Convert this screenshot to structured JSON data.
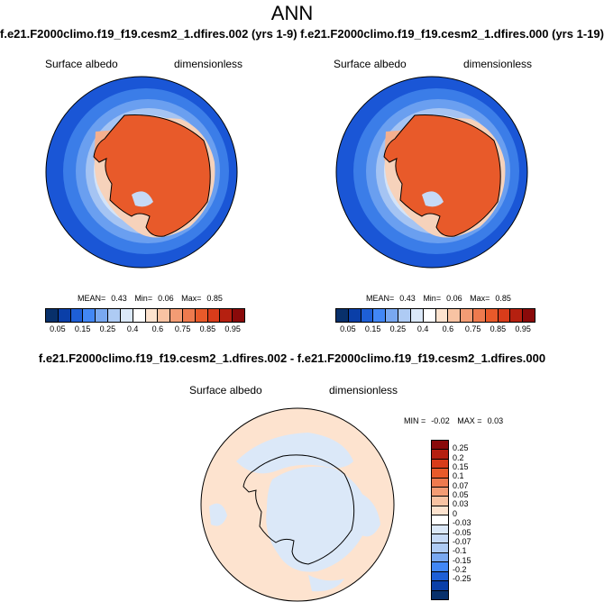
{
  "title": "ANN",
  "runs": {
    "left": "f.e21.F2000climo.f19_f19.cesm2_1.dfires.002 (yrs 1-9)",
    "right": "f.e21.F2000climo.f19_f19.cesm2_1.dfires.000 (yrs 1-19)"
  },
  "panels": [
    {
      "variable": "Surface albedo",
      "units": "dimensionless",
      "stats": {
        "mean_label": "MEAN=",
        "mean": "0.43",
        "min_label": "Min=",
        "min": "0.06",
        "max_label": "Max=",
        "max": "0.85"
      }
    },
    {
      "variable": "Surface albedo",
      "units": "dimensionless",
      "stats": {
        "mean_label": "MEAN=",
        "mean": "0.43",
        "min_label": "Min=",
        "min": "0.06",
        "max_label": "Max=",
        "max": "0.85"
      }
    }
  ],
  "colorbar": {
    "colors": [
      "#08306b",
      "#0a3fa8",
      "#1e5fd6",
      "#4287f5",
      "#79a8f0",
      "#aecbf4",
      "#dbe8f8",
      "#ffffff",
      "#fde3cf",
      "#f8c3a3",
      "#f39c74",
      "#ee7a4e",
      "#e85a2a",
      "#d83c1a",
      "#b52010",
      "#8a0a0a"
    ],
    "ticks": [
      "0.05",
      "0.15",
      "0.25",
      "0.4",
      "0.6",
      "0.75",
      "0.85",
      "0.95"
    ]
  },
  "difference": {
    "title": "f.e21.F2000climo.f19_f19.cesm2_1.dfires.002 - f.e21.F2000climo.f19_f19.cesm2_1.dfires.000",
    "variable": "Surface albedo",
    "units": "dimensionless",
    "stats": {
      "min_label": "MIN =",
      "min": "-0.02",
      "max_label": "MAX =",
      "max": "0.03"
    },
    "colorbar": {
      "colors": [
        "#8a0a0a",
        "#b52010",
        "#d83c1a",
        "#e85a2a",
        "#ee7a4e",
        "#f39c74",
        "#f8c3a3",
        "#fde3cf",
        "#ffffff",
        "#dbe8f8",
        "#c6daf7",
        "#aecbf4",
        "#79a8f0",
        "#4287f5",
        "#1e5fd6",
        "#0a3fa8",
        "#08306b"
      ],
      "ticks": [
        "0.25",
        "0.2",
        "0.15",
        "0.1",
        "0.07",
        "0.05",
        "0.03",
        "0",
        "-0.03",
        "-0.05",
        "-0.07",
        "-0.1",
        "-0.15",
        "-0.2",
        "-0.25"
      ]
    }
  }
}
